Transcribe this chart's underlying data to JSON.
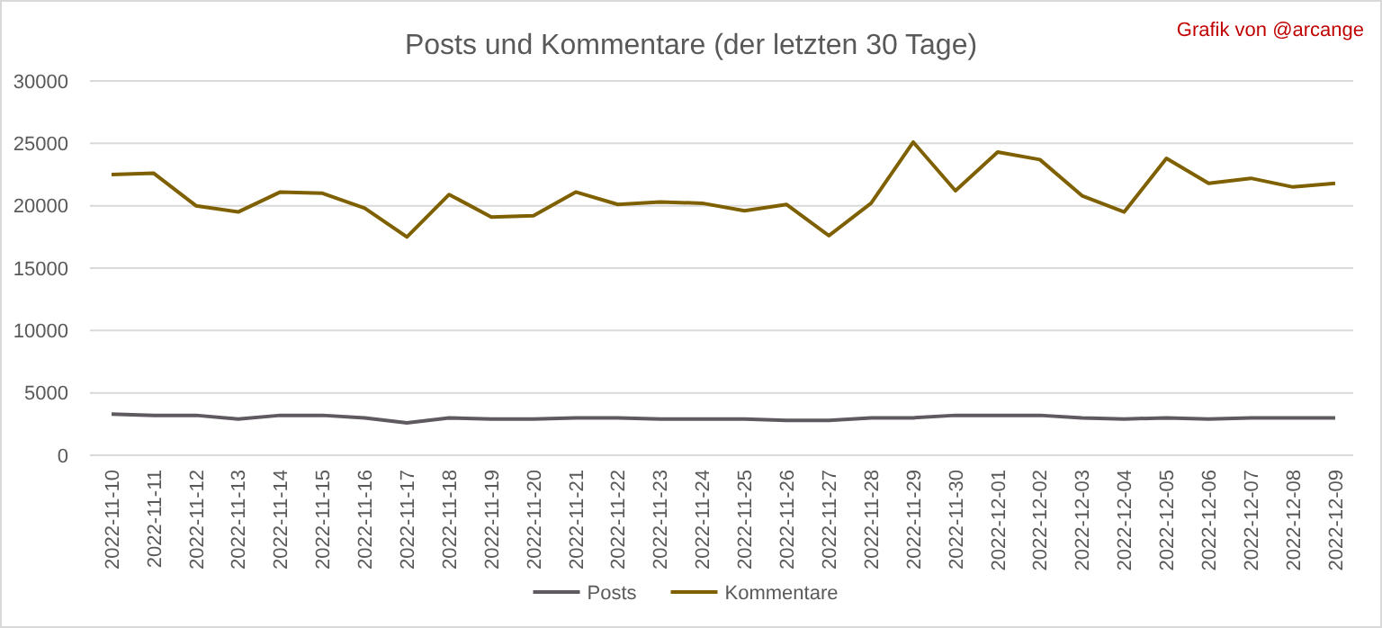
{
  "chart_data": {
    "type": "line",
    "title": "Posts und Kommentare (der letzten 30 Tage)",
    "annotations": [
      "Grafik von @arcange"
    ],
    "categories": [
      "2022-11-10",
      "2022-11-11",
      "2022-11-12",
      "2022-11-13",
      "2022-11-14",
      "2022-11-15",
      "2022-11-16",
      "2022-11-17",
      "2022-11-18",
      "2022-11-19",
      "2022-11-20",
      "2022-11-21",
      "2022-11-22",
      "2022-11-23",
      "2022-11-24",
      "2022-11-25",
      "2022-11-26",
      "2022-11-27",
      "2022-11-28",
      "2022-11-29",
      "2022-11-30",
      "2022-12-01",
      "2022-12-02",
      "2022-12-03",
      "2022-12-04",
      "2022-12-05",
      "2022-12-06",
      "2022-12-07",
      "2022-12-08",
      "2022-12-09"
    ],
    "series": [
      {
        "name": "Posts",
        "color": "#5f5a5f",
        "values": [
          3300,
          3200,
          3200,
          2900,
          3200,
          3200,
          3000,
          2600,
          3000,
          2900,
          2900,
          3000,
          3000,
          2900,
          2900,
          2900,
          2800,
          2800,
          3000,
          3000,
          3200,
          3200,
          3200,
          3000,
          2900,
          3000,
          2900,
          3000,
          3000,
          3000
        ]
      },
      {
        "name": "Kommentare",
        "color": "#7f6000",
        "values": [
          22500,
          22600,
          20000,
          19500,
          21100,
          21000,
          19800,
          17500,
          20900,
          19100,
          19200,
          21100,
          20100,
          20300,
          20200,
          19600,
          20100,
          17600,
          20200,
          25100,
          21200,
          24300,
          23700,
          20800,
          19500,
          23800,
          21800,
          22200,
          21500,
          21800
        ]
      }
    ],
    "ylim": [
      0,
      30000
    ],
    "yticks": [
      0,
      5000,
      10000,
      15000,
      20000,
      25000,
      30000
    ],
    "grid": "y",
    "legend": "bottom",
    "marker": "none",
    "line_style": "solid"
  }
}
